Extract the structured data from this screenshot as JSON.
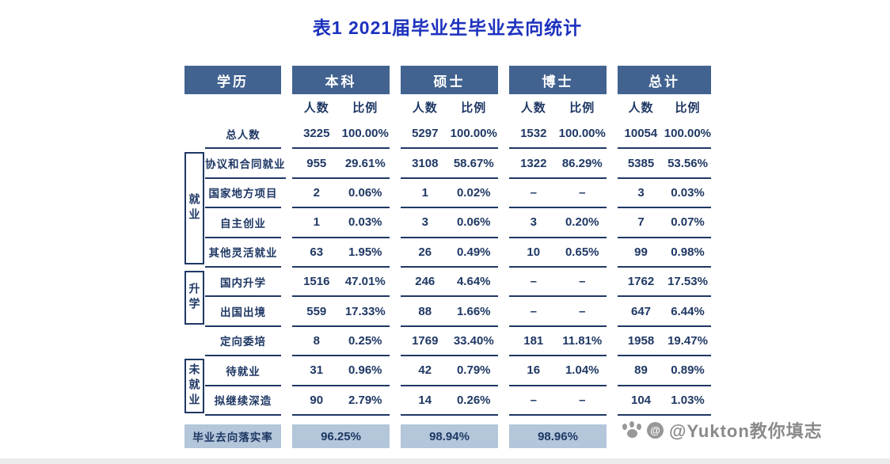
{
  "title": "表1 2021届毕业生毕业去向统计",
  "chart_data": {
    "type": "table",
    "title": "表1 2021届毕业生毕业去向统计",
    "column_groups": [
      "学历",
      "本科",
      "硕士",
      "博士",
      "总计"
    ],
    "sub_columns": [
      "人数",
      "比例"
    ],
    "row_groups": [
      {
        "label": "就业",
        "rows": [
          "协议和合同就业",
          "国家地方项目",
          "自主创业",
          "其他灵活就业"
        ]
      },
      {
        "label": "升学",
        "rows": [
          "国内升学",
          "出国出境"
        ]
      },
      {
        "label": "未就业",
        "rows": [
          "待就业",
          "拟继续深造"
        ]
      }
    ],
    "rows": [
      {
        "label": "总人数",
        "values": [
          "3225",
          "100.00%",
          "5297",
          "100.00%",
          "1532",
          "100.00%",
          "10054",
          "100.00%"
        ]
      },
      {
        "label": "协议和合同就业",
        "values": [
          "955",
          "29.61%",
          "3108",
          "58.67%",
          "1322",
          "86.29%",
          "5385",
          "53.56%"
        ]
      },
      {
        "label": "国家地方项目",
        "values": [
          "2",
          "0.06%",
          "1",
          "0.02%",
          "–",
          "–",
          "3",
          "0.03%"
        ]
      },
      {
        "label": "自主创业",
        "values": [
          "1",
          "0.03%",
          "3",
          "0.06%",
          "3",
          "0.20%",
          "7",
          "0.07%"
        ]
      },
      {
        "label": "其他灵活就业",
        "values": [
          "63",
          "1.95%",
          "26",
          "0.49%",
          "10",
          "0.65%",
          "99",
          "0.98%"
        ]
      },
      {
        "label": "国内升学",
        "values": [
          "1516",
          "47.01%",
          "246",
          "4.64%",
          "–",
          "–",
          "1762",
          "17.53%"
        ]
      },
      {
        "label": "出国出境",
        "values": [
          "559",
          "17.33%",
          "88",
          "1.66%",
          "–",
          "–",
          "647",
          "6.44%"
        ]
      },
      {
        "label": "定向委培",
        "values": [
          "8",
          "0.25%",
          "1769",
          "33.40%",
          "181",
          "11.81%",
          "1958",
          "19.47%"
        ]
      },
      {
        "label": "待就业",
        "values": [
          "31",
          "0.96%",
          "42",
          "0.79%",
          "16",
          "1.04%",
          "89",
          "0.89%"
        ]
      },
      {
        "label": "拟继续深造",
        "values": [
          "90",
          "2.79%",
          "14",
          "0.26%",
          "–",
          "–",
          "104",
          "1.03%"
        ]
      }
    ],
    "footer": {
      "label": "毕业去向落实率",
      "values": [
        "96.25%",
        "98.94%",
        "98.96%"
      ]
    }
  },
  "colors": {
    "header_bg": "#426390",
    "text_navy": "#1f3864",
    "title_blue": "#1c31bd",
    "footer_bg": "#b3c6da"
  },
  "watermark": {
    "icons": [
      "paw-icon",
      "at-circle-icon"
    ],
    "at_symbol": "@",
    "text": "@Yukton教你填志"
  }
}
